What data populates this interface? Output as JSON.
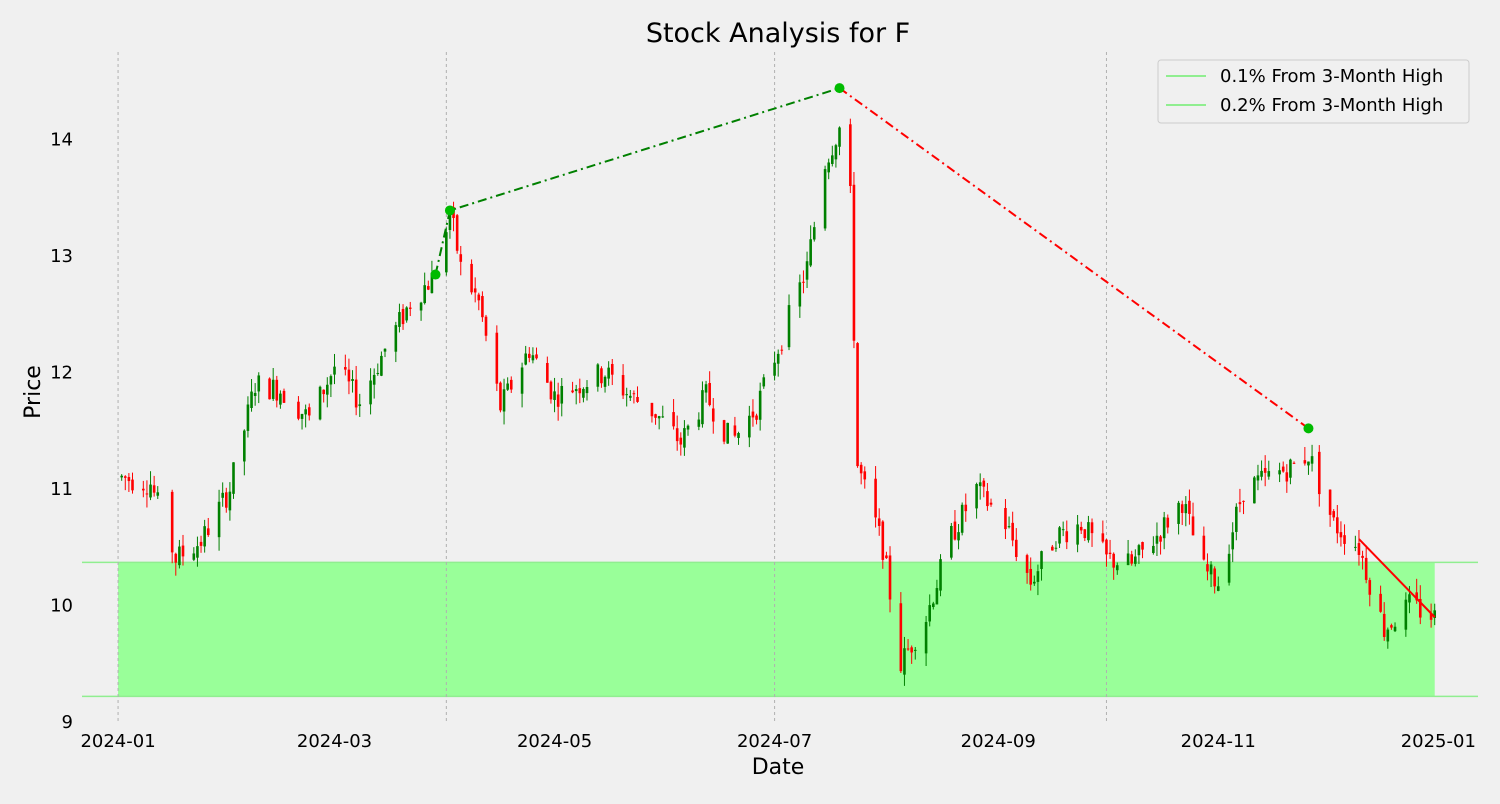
{
  "chart_data": {
    "type": "candlestick",
    "title": "Stock Analysis for F",
    "xlabel": "Date",
    "ylabel": "Price",
    "x_range": [
      "2023-12-22",
      "2025-01-12"
    ],
    "ylim": [
      9.0,
      14.75
    ],
    "x_ticks": [
      "2024-01",
      "2024-03",
      "2024-05",
      "2024-07",
      "2024-09",
      "2024-11",
      "2025-01"
    ],
    "x_tick_dates": [
      "2024-01-01",
      "2024-03-01",
      "2024-05-01",
      "2024-07-01",
      "2024-09-01",
      "2024-11-01",
      "2025-01-01"
    ],
    "y_ticks": [
      9,
      10,
      11,
      12,
      13,
      14
    ],
    "grid": "vertical lines at 3-month marks",
    "legend": {
      "placement": "top-right",
      "entries": [
        "0.1% From 3-Month High",
        "0.2% From 3-Month High"
      ],
      "color": "#90ee90"
    },
    "colors": {
      "up": "#008000",
      "down": "#ff0000",
      "band": "#99ff99",
      "trend_up": "#008000",
      "trend_down": "#ff0000",
      "marker": "#00bb00"
    },
    "band": {
      "lower": 9.22,
      "upper": 10.37,
      "start": "2024-01-01",
      "end": "2024-12-31"
    },
    "quarter_lines": [
      "2024-01-01",
      "2024-04-01",
      "2024-07-01",
      "2024-10-01"
    ],
    "trend_lines": [
      {
        "color": "#008000",
        "style": "dashdot",
        "points": [
          [
            "2024-03-29",
            12.84
          ],
          [
            "2024-04-02",
            13.39
          ],
          [
            "2024-07-19",
            14.44
          ]
        ]
      },
      {
        "color": "#ff0000",
        "style": "dashdot",
        "points": [
          [
            "2024-07-19",
            14.44
          ],
          [
            "2024-11-26",
            11.52
          ]
        ]
      },
      {
        "color": "#ff0000",
        "style": "solid",
        "points": [
          [
            "2024-12-10",
            10.57
          ],
          [
            "2024-12-31",
            9.9
          ]
        ]
      }
    ],
    "markers": [
      {
        "date": "2024-03-29",
        "value": 12.84
      },
      {
        "date": "2024-04-02",
        "value": 13.39
      },
      {
        "date": "2024-07-19",
        "value": 14.44
      },
      {
        "date": "2024-11-26",
        "value": 11.52
      }
    ],
    "anchors": [
      [
        "2024-01-02",
        11.1
      ],
      [
        "2024-01-10",
        11.05
      ],
      [
        "2024-01-17",
        10.4
      ],
      [
        "2024-01-24",
        10.55
      ],
      [
        "2024-02-01",
        11.0
      ],
      [
        "2024-02-08",
        11.9
      ],
      [
        "2024-02-15",
        11.85
      ],
      [
        "2024-02-23",
        11.6
      ],
      [
        "2024-03-01",
        12.05
      ],
      [
        "2024-03-08",
        11.75
      ],
      [
        "2024-03-15",
        12.2
      ],
      [
        "2024-03-22",
        12.6
      ],
      [
        "2024-03-29",
        12.84
      ],
      [
        "2024-04-02",
        13.39
      ],
      [
        "2024-04-05",
        12.9
      ],
      [
        "2024-04-10",
        12.6
      ],
      [
        "2024-04-16",
        11.7
      ],
      [
        "2024-04-24",
        12.2
      ],
      [
        "2024-05-01",
        11.8
      ],
      [
        "2024-05-08",
        11.9
      ],
      [
        "2024-05-15",
        12.0
      ],
      [
        "2024-05-22",
        11.8
      ],
      [
        "2024-05-29",
        11.65
      ],
      [
        "2024-06-05",
        11.4
      ],
      [
        "2024-06-12",
        11.8
      ],
      [
        "2024-06-19",
        11.4
      ],
      [
        "2024-06-26",
        11.7
      ],
      [
        "2024-07-03",
        12.3
      ],
      [
        "2024-07-10",
        12.9
      ],
      [
        "2024-07-15",
        13.8
      ],
      [
        "2024-07-19",
        14.1
      ],
      [
        "2024-07-22",
        13.5
      ],
      [
        "2024-07-24",
        11.2
      ],
      [
        "2024-07-31",
        10.5
      ],
      [
        "2024-08-05",
        9.5
      ],
      [
        "2024-08-12",
        9.9
      ],
      [
        "2024-08-19",
        10.6
      ],
      [
        "2024-08-26",
        11.0
      ],
      [
        "2024-09-03",
        10.7
      ],
      [
        "2024-09-10",
        10.2
      ],
      [
        "2024-09-17",
        10.6
      ],
      [
        "2024-09-24",
        10.7
      ],
      [
        "2024-10-01",
        10.4
      ],
      [
        "2024-10-08",
        10.35
      ],
      [
        "2024-10-15",
        10.6
      ],
      [
        "2024-10-22",
        10.9
      ],
      [
        "2024-10-28",
        10.3
      ],
      [
        "2024-11-01",
        10.2
      ],
      [
        "2024-11-08",
        11.0
      ],
      [
        "2024-11-15",
        11.1
      ],
      [
        "2024-11-22",
        11.2
      ],
      [
        "2024-11-26",
        11.3
      ],
      [
        "2024-12-03",
        10.7
      ],
      [
        "2024-12-10",
        10.5
      ],
      [
        "2024-12-17",
        9.8
      ],
      [
        "2024-12-24",
        10.0
      ],
      [
        "2024-12-31",
        9.9
      ]
    ]
  }
}
